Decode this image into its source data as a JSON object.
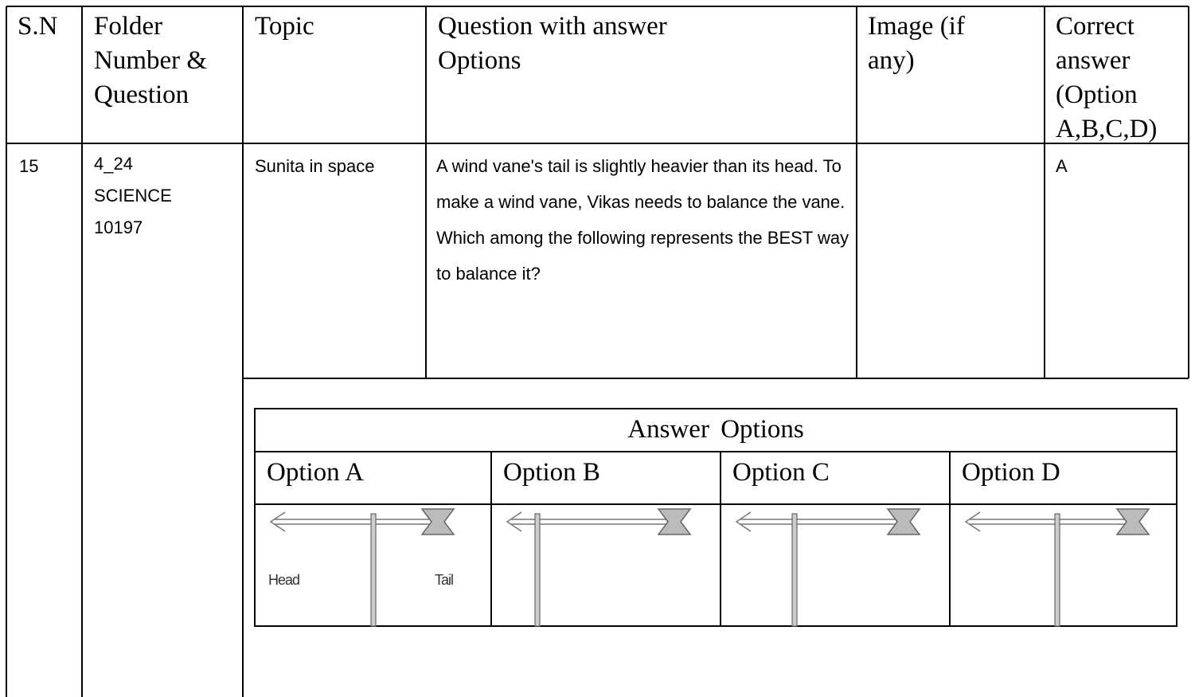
{
  "table": {
    "header": [
      "S.N",
      "Folder Number & Question",
      "Topic",
      "Question with answer Options",
      "Image (if any)",
      "Correct answer (Option A,B,C,D)"
    ],
    "row": {
      "sn": "15",
      "folder": [
        "4_24",
        "SCIENCE",
        "10197"
      ],
      "topic": "Sunita in space",
      "question": "A wind vane's tail is slightly heavier than its head. To make a wind vane, Vikas needs to balance the vane. Which among the following represents the BEST way to balance it?",
      "correct_answer": "A"
    },
    "answer_options": {
      "title": "Answer Options",
      "options": [
        "Option A",
        "Option B",
        "Option C",
        "Option D"
      ],
      "image_labels": {
        "head": "Head",
        "tail": "Tail"
      }
    }
  }
}
